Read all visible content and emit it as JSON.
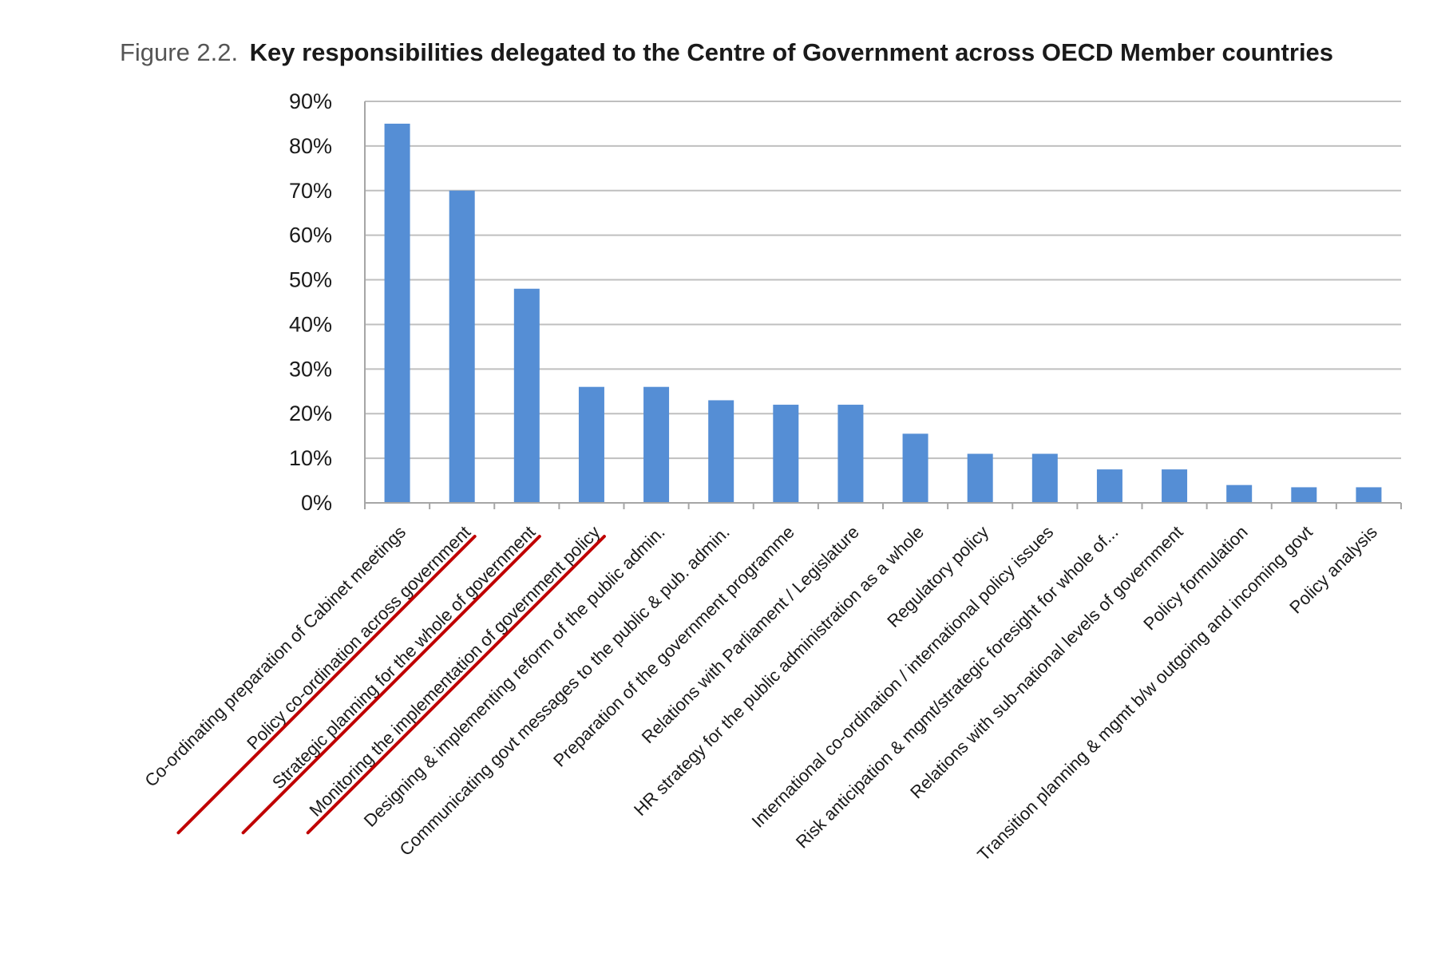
{
  "title": {
    "prefix": "Figure 2.2.",
    "main": "Key responsibilities delegated to the Centre of Government across OECD Member countries"
  },
  "colors": {
    "bar": "#558ED5",
    "highlight": "#C00000",
    "grid": "#BFBFBF"
  },
  "chart_data": {
    "type": "bar",
    "title": "Key responsibilities delegated to the Centre of Government across OECD Member countries",
    "xlabel": "",
    "ylabel": "",
    "ylim": [
      0,
      90
    ],
    "yticks": [
      0,
      10,
      20,
      30,
      40,
      50,
      60,
      70,
      80,
      90
    ],
    "ytick_labels": [
      "0%",
      "10%",
      "20%",
      "30%",
      "40%",
      "50%",
      "60%",
      "70%",
      "80%",
      "90%"
    ],
    "grid": true,
    "categories": [
      "Co-ordinating preparation of Cabinet meetings",
      "Policy co-ordination across government",
      "Strategic planning for the whole of government",
      "Monitoring the implementation of government policy",
      "Designing & implementing reform of the public admin.",
      "Communicating govt messages to the public &  pub. admin.",
      "Preparation of the government programme",
      "Relations with Parliament / Legislature",
      "HR strategy for the public administration as a whole",
      "Regulatory policy",
      "International co-ordination / international policy issues",
      "Risk anticipation & mgmt/strategic foresight for whole of...",
      "Relations with sub-national levels of government",
      "Policy formulation",
      "Transition planning & mgmt b/w outgoing and incoming govt",
      "Policy analysis"
    ],
    "values": [
      85,
      70,
      48,
      26,
      26,
      23,
      22,
      22,
      15.5,
      11,
      11,
      7.5,
      7.5,
      4,
      3.5,
      3.5
    ],
    "highlighted_categories": [
      1,
      2,
      3
    ]
  }
}
